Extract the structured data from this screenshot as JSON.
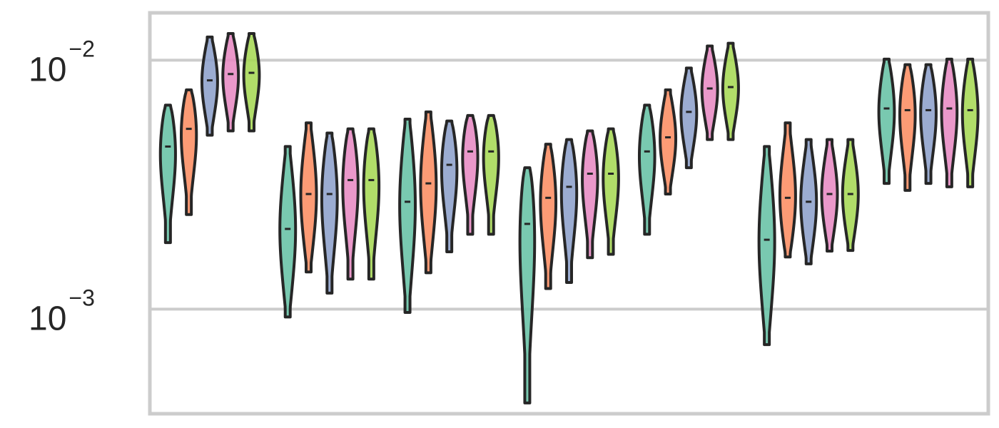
{
  "chart_data": {
    "type": "violin",
    "title": "",
    "xlabel": "",
    "ylabel": "",
    "yscale": "log",
    "ylim": [
      0.00038,
      0.0155
    ],
    "y_ticks": [
      {
        "value": 0.01,
        "base": "10",
        "exponent": "−2"
      },
      {
        "value": 0.001,
        "base": "10",
        "exponent": "−3"
      }
    ],
    "grid": "horizontal",
    "legend": "none",
    "colors": [
      "#66c2a5",
      "#fc8d62",
      "#8da0cb",
      "#e78ac3",
      "#a6d854"
    ],
    "edge_color": "#262626",
    "groups": [
      {
        "violins": [
          {
            "min": 0.00185,
            "max": 0.0066,
            "median": 0.0045
          },
          {
            "min": 0.0024,
            "max": 0.0076,
            "median": 0.0053
          },
          {
            "min": 0.005,
            "max": 0.0124,
            "median": 0.0083
          },
          {
            "min": 0.0052,
            "max": 0.0128,
            "median": 0.0088
          },
          {
            "min": 0.0052,
            "max": 0.0128,
            "median": 0.0089
          }
        ]
      },
      {
        "violins": [
          {
            "min": 0.00093,
            "max": 0.0045,
            "median": 0.0021
          },
          {
            "min": 0.00141,
            "max": 0.0056,
            "median": 0.0029
          },
          {
            "min": 0.00116,
            "max": 0.0051,
            "median": 0.0029
          },
          {
            "min": 0.00132,
            "max": 0.0053,
            "median": 0.0033
          },
          {
            "min": 0.00132,
            "max": 0.0053,
            "median": 0.0033
          }
        ]
      },
      {
        "violins": [
          {
            "min": 0.00097,
            "max": 0.0058,
            "median": 0.0027
          },
          {
            "min": 0.0014,
            "max": 0.0062,
            "median": 0.0032
          },
          {
            "min": 0.0017,
            "max": 0.0057,
            "median": 0.0038
          },
          {
            "min": 0.002,
            "max": 0.006,
            "median": 0.0043
          },
          {
            "min": 0.002,
            "max": 0.006,
            "median": 0.0043
          }
        ]
      },
      {
        "violins": [
          {
            "min": 0.00042,
            "max": 0.0037,
            "median": 0.0022
          },
          {
            "min": 0.00121,
            "max": 0.0046,
            "median": 0.0028
          },
          {
            "min": 0.00128,
            "max": 0.0048,
            "median": 0.0031
          },
          {
            "min": 0.00161,
            "max": 0.0052,
            "median": 0.0035
          },
          {
            "min": 0.00166,
            "max": 0.0053,
            "median": 0.0035
          }
        ]
      },
      {
        "violins": [
          {
            "min": 0.002,
            "max": 0.0066,
            "median": 0.0043
          },
          {
            "min": 0.0029,
            "max": 0.0076,
            "median": 0.0049
          },
          {
            "min": 0.0037,
            "max": 0.0093,
            "median": 0.0062
          },
          {
            "min": 0.0048,
            "max": 0.0114,
            "median": 0.0077
          },
          {
            "min": 0.0048,
            "max": 0.0117,
            "median": 0.0078
          }
        ]
      },
      {
        "violins": [
          {
            "min": 0.00072,
            "max": 0.0045,
            "median": 0.0019
          },
          {
            "min": 0.00162,
            "max": 0.0056,
            "median": 0.0028
          },
          {
            "min": 0.00152,
            "max": 0.0048,
            "median": 0.0027
          },
          {
            "min": 0.00171,
            "max": 0.0048,
            "median": 0.0029
          },
          {
            "min": 0.00172,
            "max": 0.0048,
            "median": 0.0029
          }
        ]
      },
      {
        "violins": [
          {
            "min": 0.0032,
            "max": 0.0101,
            "median": 0.0064
          },
          {
            "min": 0.003,
            "max": 0.0096,
            "median": 0.0063
          },
          {
            "min": 0.0032,
            "max": 0.0096,
            "median": 0.0063
          },
          {
            "min": 0.0031,
            "max": 0.0101,
            "median": 0.0064
          },
          {
            "min": 0.0031,
            "max": 0.0101,
            "median": 0.0063
          }
        ]
      }
    ]
  }
}
